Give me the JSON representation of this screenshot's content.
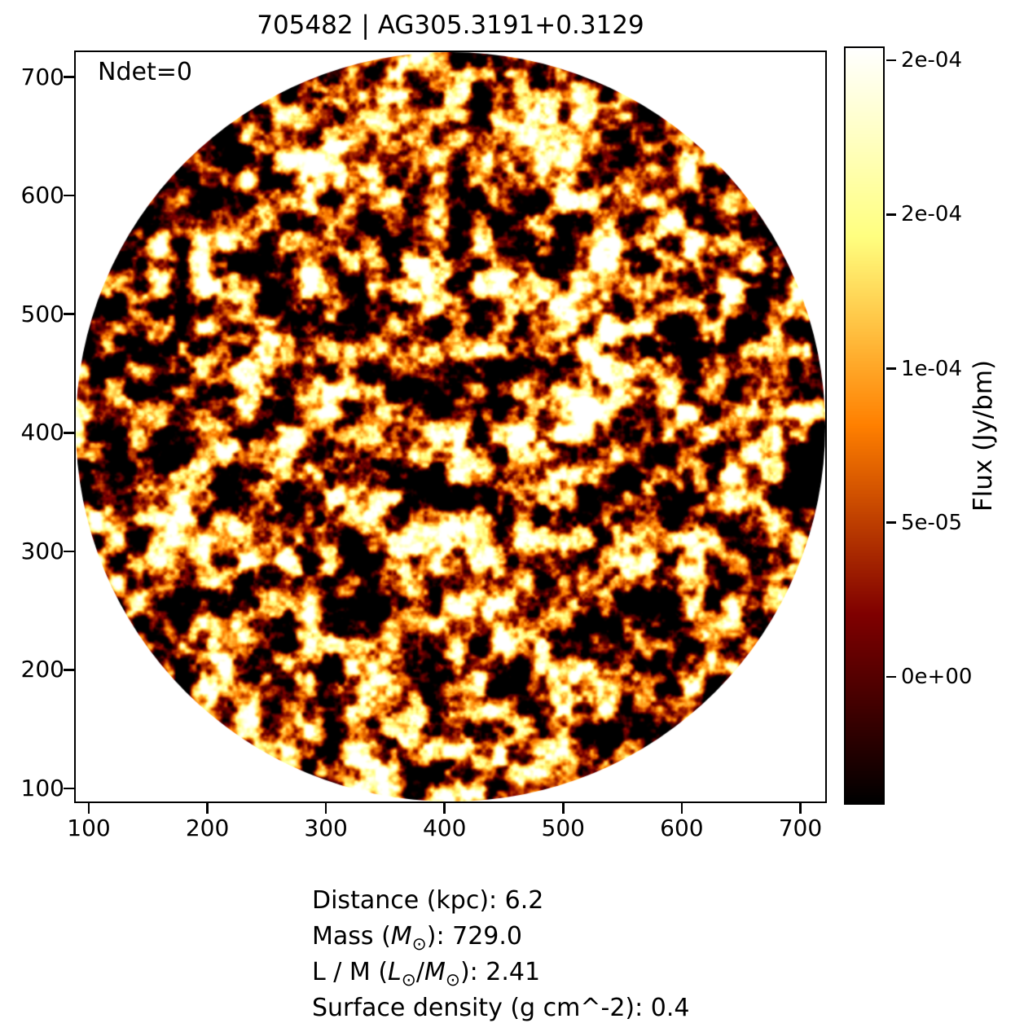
{
  "figure": {
    "title": "705482 | AG305.3191+0.3129"
  },
  "chart_data": {
    "type": "heatmap",
    "title": "705482 | AG305.3191+0.3129",
    "annotation": "Ndet=0",
    "xlabel": "",
    "ylabel": "",
    "x_ticks": [
      100,
      200,
      300,
      400,
      500,
      600,
      700
    ],
    "y_ticks": [
      100,
      200,
      300,
      400,
      500,
      600,
      700
    ],
    "x_range": [
      89,
      721
    ],
    "y_range": [
      89,
      721
    ],
    "grid": false,
    "image": {
      "shape": "circle",
      "circle_center": [
        405,
        405
      ],
      "circle_radius": 316,
      "colormap": "afmhot",
      "vmin": -4.1e-05,
      "vmax": 0.000204,
      "background_outside_mask": "#ffffff",
      "bright_spots": [
        {
          "x": 517,
          "y": 420,
          "intensity": 1.3,
          "radius": 8
        },
        {
          "x": 410,
          "y": 360,
          "intensity": 0.32,
          "radius": 10
        },
        {
          "x": 536,
          "y": 604,
          "intensity": 0.26,
          "radius": 9
        },
        {
          "x": 282,
          "y": 208,
          "intensity": 0.3,
          "radius": 8
        },
        {
          "x": 612,
          "y": 190,
          "intensity": 0.3,
          "radius": 8
        }
      ]
    },
    "colorbar": {
      "label": "Flux (Jy/bm)",
      "tick_labels": [
        "2e-04",
        "2e-04",
        "1e-04",
        "5e-05",
        "0e+00"
      ],
      "tick_values": [
        0.0002,
        0.00015,
        0.0001,
        5e-05,
        0
      ],
      "vmin": -4.1e-05,
      "vmax": 0.000204,
      "position": "right"
    },
    "info_lines": [
      "Distance (kpc): 6.2",
      "Mass (M⊙): 729.0",
      "L / M (L⊙/M⊙): 2.41",
      "Surface density (g cm^-2): 0.4"
    ]
  }
}
